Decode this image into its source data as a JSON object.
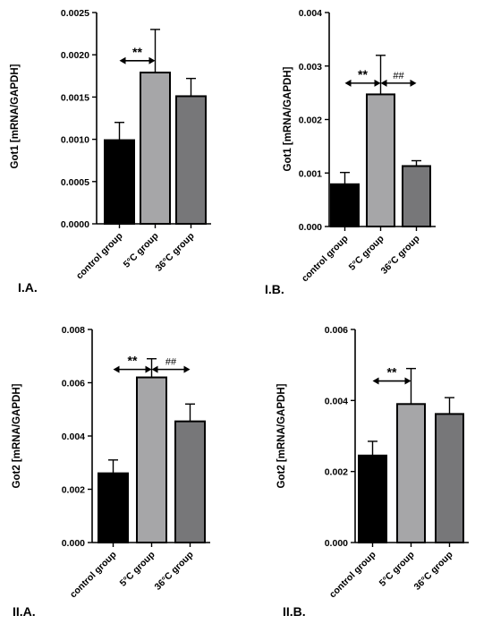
{
  "figure": {
    "colors": {
      "control": "#000000",
      "cold": "#a6a6a8",
      "warm": "#777779"
    }
  },
  "chart_data": [
    {
      "id": "IA",
      "type": "bar",
      "panel_label": "I.A.",
      "ylabel": "Got1 [mRNA/GAPDH]",
      "categories": [
        "control group",
        "5°C group",
        "36°C group"
      ],
      "values": [
        0.00099,
        0.00179,
        0.00151
      ],
      "errors": [
        0.00021,
        0.00051,
        0.00021
      ],
      "ylim": [
        0,
        0.0025
      ],
      "yticks": [
        0,
        0.0005,
        0.001,
        0.0015,
        0.002,
        0.0025
      ],
      "ytick_labels": [
        "0.0000",
        "0.0005",
        "0.0010",
        "0.0015",
        "0.0020",
        "0.0025"
      ],
      "annotations": [
        {
          "from": 0,
          "to": 1,
          "y": 0.00193,
          "label": "**",
          "kind": "star"
        }
      ]
    },
    {
      "id": "IB",
      "type": "bar",
      "panel_label": "I.B.",
      "ylabel": "Got1 [mRNA/GAPDH]",
      "categories": [
        "control group",
        "5°C group",
        "36°C group"
      ],
      "values": [
        0.00079,
        0.00247,
        0.00113
      ],
      "errors": [
        0.00022,
        0.00073,
        0.0001
      ],
      "ylim": [
        0,
        0.004
      ],
      "yticks": [
        0,
        0.001,
        0.002,
        0.003,
        0.004
      ],
      "ytick_labels": [
        "0.000",
        "0.001",
        "0.002",
        "0.003",
        "0.004"
      ],
      "annotations": [
        {
          "from": 0,
          "to": 1,
          "y": 0.00268,
          "label": "**",
          "kind": "star"
        },
        {
          "from": 1,
          "to": 2,
          "y": 0.00268,
          "label": "##",
          "kind": "hash"
        }
      ]
    },
    {
      "id": "IIA",
      "type": "bar",
      "panel_label": "II.A.",
      "ylabel": "Got2 [mRNA/GAPDH]",
      "categories": [
        "control group",
        "5°C group",
        "36°C group"
      ],
      "values": [
        0.0026,
        0.0062,
        0.00455
      ],
      "errors": [
        0.0005,
        0.0007,
        0.00065
      ],
      "ylim": [
        0,
        0.008
      ],
      "yticks": [
        0,
        0.002,
        0.004,
        0.006,
        0.008
      ],
      "ytick_labels": [
        "0.000",
        "0.002",
        "0.004",
        "0.006",
        "0.008"
      ],
      "annotations": [
        {
          "from": 0,
          "to": 1,
          "y": 0.0065,
          "label": "**",
          "kind": "star"
        },
        {
          "from": 1,
          "to": 2,
          "y": 0.0065,
          "label": "##",
          "kind": "hash"
        }
      ]
    },
    {
      "id": "IIB",
      "type": "bar",
      "panel_label": "II.B.",
      "ylabel": "Got2 [mRNA/GAPDH]",
      "categories": [
        "control group",
        "5°C group",
        "36°C group"
      ],
      "values": [
        0.00245,
        0.0039,
        0.00362
      ],
      "errors": [
        0.0004,
        0.001,
        0.00046
      ],
      "ylim": [
        0,
        0.006
      ],
      "yticks": [
        0,
        0.002,
        0.004,
        0.006
      ],
      "ytick_labels": [
        "0.000",
        "0.002",
        "0.004",
        "0.006"
      ],
      "annotations": [
        {
          "from": 0,
          "to": 1,
          "y": 0.00455,
          "label": "**",
          "kind": "star"
        }
      ]
    }
  ]
}
